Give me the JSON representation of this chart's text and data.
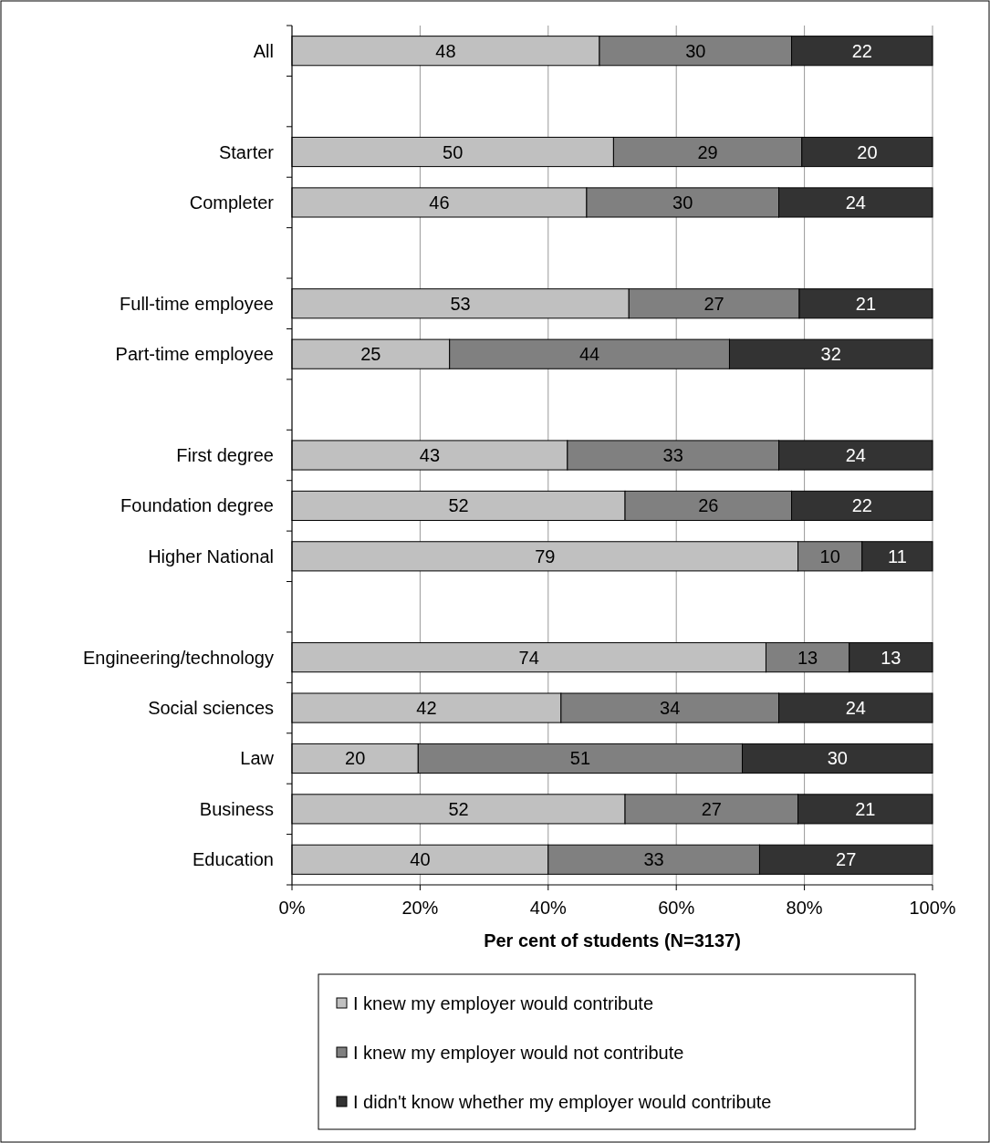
{
  "chart_data": {
    "type": "bar",
    "orientation": "horizontal",
    "stacked": true,
    "xlabel": "Per cent of students (N=3137)",
    "categories": [
      "All",
      null,
      "Starter",
      "Completer",
      null,
      "Full-time employee",
      "Part-time employee",
      null,
      "First degree",
      "Foundation degree",
      "Higher National",
      null,
      "Engineering/technology",
      "Social sciences",
      "Law",
      "Business",
      "Education"
    ],
    "series": [
      {
        "name": "I knew my employer would contribute",
        "color": "#c0c0c0",
        "values": [
          48,
          null,
          50.2,
          46,
          null,
          52.6,
          24.6,
          null,
          43,
          52,
          79,
          null,
          74,
          42,
          19.7,
          52,
          40
        ],
        "value_labels": [
          "48",
          null,
          "50",
          "46",
          null,
          "53",
          "25",
          null,
          "43",
          "52",
          "79",
          null,
          "74",
          "42",
          "20",
          "52",
          "40"
        ]
      },
      {
        "name": "I knew my employer would not contribute",
        "color": "#808080",
        "values": [
          30,
          null,
          29.4,
          30,
          null,
          26.6,
          43.7,
          null,
          33,
          26,
          10,
          null,
          13,
          34,
          50.6,
          27,
          33
        ],
        "value_labels": [
          "30",
          null,
          "29",
          "30",
          null,
          "27",
          "44",
          null,
          "33",
          "26",
          "10",
          null,
          "13",
          "34",
          "51",
          "27",
          "33"
        ]
      },
      {
        "name": "I didn't know whether my employer would contribute",
        "color": "#333333",
        "values": [
          22,
          null,
          20.4,
          24,
          null,
          20.8,
          31.7,
          null,
          24,
          22,
          11,
          null,
          13,
          24,
          29.7,
          21,
          27
        ],
        "value_labels": [
          "22",
          null,
          "20",
          "24",
          null,
          "21",
          "32",
          null,
          "24",
          "22",
          "11",
          null,
          "13",
          "24",
          "30",
          "21",
          "27"
        ]
      }
    ],
    "xlim": [
      0,
      100
    ],
    "xticks": [
      {
        "value": 0,
        "label": "0%"
      },
      {
        "value": 20,
        "label": "20%"
      },
      {
        "value": 40,
        "label": "40%"
      },
      {
        "value": 60,
        "label": "60%"
      },
      {
        "value": 80,
        "label": "80%"
      },
      {
        "value": 100,
        "label": "100%"
      }
    ],
    "grid": "x",
    "legend": "bottom"
  }
}
